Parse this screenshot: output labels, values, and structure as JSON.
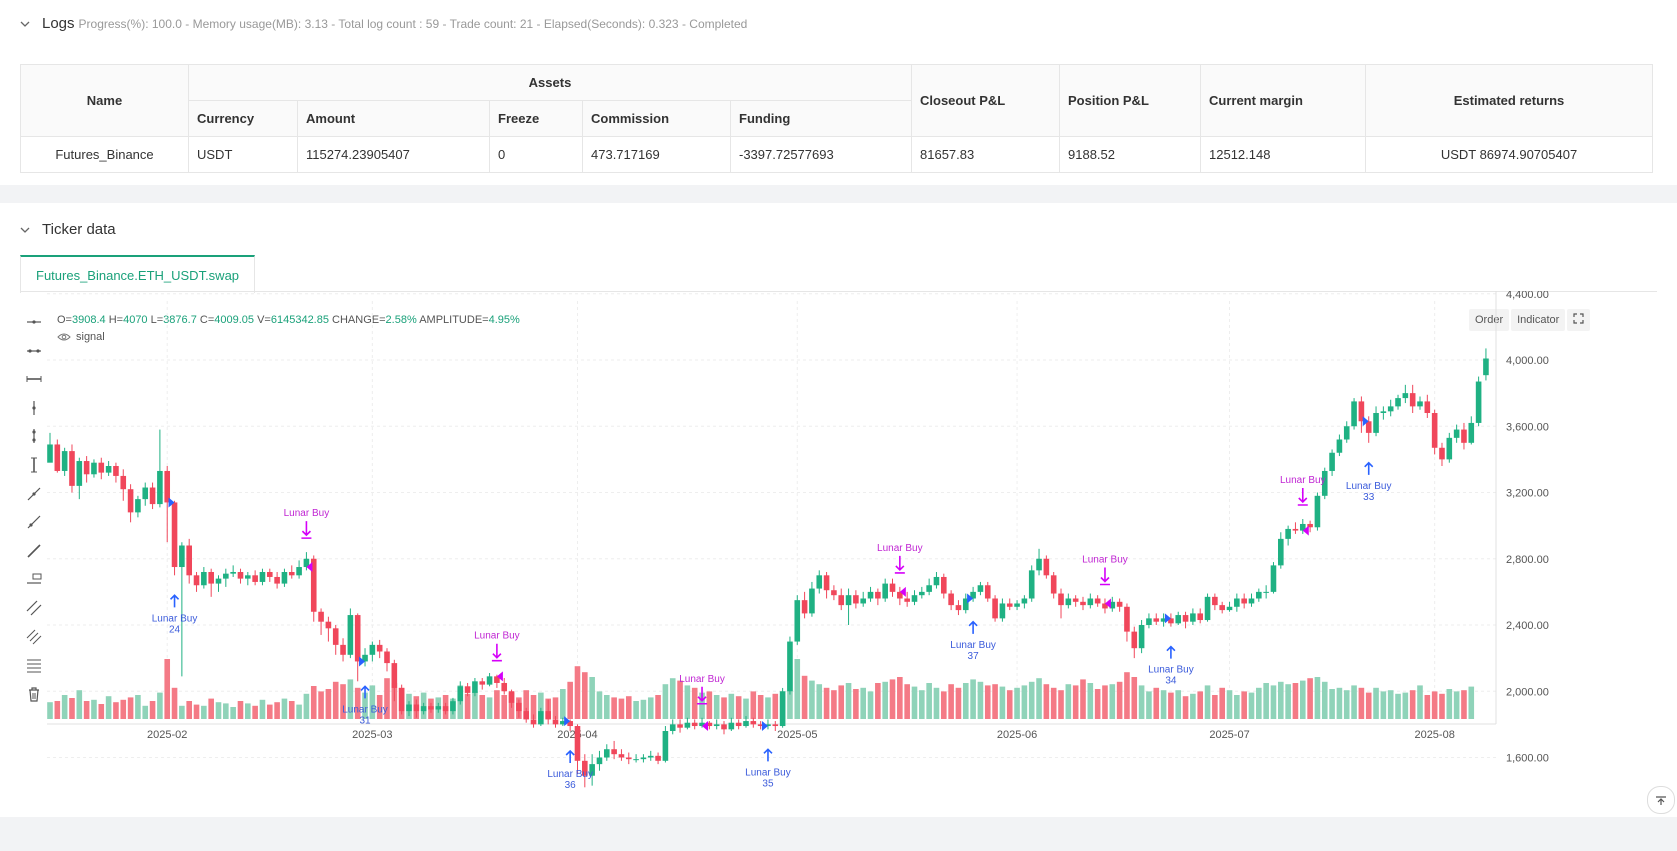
{
  "logs": {
    "title": "Logs",
    "status": "Progress(%): 100.0  - Memory usage(MB): 3.13 - Total log count : 59 - Trade count:  21 - Elapsed(Seconds): 0.323 - Completed",
    "table": {
      "headers": {
        "name": "Name",
        "assets": "Assets",
        "currency": "Currency",
        "amount": "Amount",
        "freeze": "Freeze",
        "commission": "Commission",
        "funding": "Funding",
        "closeout": "Closeout P&L",
        "position": "Position P&L",
        "margin": "Current margin",
        "returns": "Estimated returns"
      },
      "row": {
        "name": "Futures_Binance",
        "currency": "USDT",
        "amount": "115274.23905407",
        "freeze": "0",
        "commission": "473.717169",
        "funding": "-3397.72577693",
        "closeout": "81657.83",
        "position": "9188.52",
        "margin": "12512.148",
        "returns": "USDT 86974.90705407"
      }
    }
  },
  "ticker": {
    "title": "Ticker data",
    "tab": "Futures_Binance.ETH_USDT.swap",
    "ohlc": {
      "o_label": "O=",
      "o": "3908.4",
      "h_label": "H=",
      "h": "4070",
      "l_label": "L=",
      "l": "3876.7",
      "c_label": "C=",
      "c": "4009.05",
      "v_label": "V=",
      "v": "6145342.85",
      "change_label": "CHANGE=",
      "change": "2.58%",
      "amp_label": "AMPLITUDE=",
      "amp": "4.95%"
    },
    "signal_label": "signal",
    "buttons": {
      "order": "Order",
      "indicator": "Indicator"
    }
  },
  "colors": {
    "up": "#26a69a",
    "down": "#ef5350",
    "buy_marker": "#2962ff",
    "sell_marker": "#d500f9",
    "accent": "#1aa17a"
  },
  "chart_data": {
    "type": "candlestick",
    "symbol": "Futures_Binance.ETH_USDT.swap",
    "y_axis": {
      "ticks": [
        1600,
        2000,
        2400,
        2800,
        3200,
        3600,
        4000,
        4400
      ],
      "tick_labels": [
        "1,600.00",
        "2,000.00",
        "2,400.00",
        "2,800.00",
        "3,200.00",
        "3,600.00",
        "4,000.00",
        "4,400.00"
      ],
      "ylim": [
        1230,
        4690
      ]
    },
    "x_axis": {
      "labels": [
        "2025-02",
        "2025-03",
        "2025-04",
        "2025-05",
        "2025-06",
        "2025-07",
        "2025-08"
      ],
      "label_day_index": [
        16,
        44,
        72,
        102,
        132,
        161,
        189
      ]
    },
    "candles": [
      [
        3380,
        3490,
        3420,
        3560
      ],
      [
        3490,
        3330,
        3520,
        3320
      ],
      [
        3330,
        3450,
        3470,
        3300
      ],
      [
        3450,
        3240,
        3490,
        3200
      ],
      [
        3240,
        3390,
        3410,
        3160
      ],
      [
        3390,
        3310,
        3420,
        3260
      ],
      [
        3310,
        3380,
        3400,
        3290
      ],
      [
        3380,
        3320,
        3410,
        3280
      ],
      [
        3320,
        3360,
        3390,
        3300
      ],
      [
        3360,
        3300,
        3380,
        3260
      ],
      [
        3300,
        3220,
        3340,
        3150
      ],
      [
        3220,
        3080,
        3250,
        3020
      ],
      [
        3080,
        3160,
        3180,
        3050
      ],
      [
        3160,
        3230,
        3260,
        3120
      ],
      [
        3230,
        3130,
        3260,
        3100
      ],
      [
        3130,
        3330,
        3580,
        3110
      ],
      [
        3330,
        3140,
        3360,
        2900
      ],
      [
        3140,
        2750,
        3150,
        2700
      ],
      [
        2750,
        2880,
        2900,
        2090
      ],
      [
        2880,
        2700,
        2920,
        2650
      ],
      [
        2700,
        2640,
        2720,
        2600
      ],
      [
        2640,
        2720,
        2750,
        2620
      ],
      [
        2720,
        2650,
        2740,
        2570
      ],
      [
        2650,
        2680,
        2700,
        2600
      ],
      [
        2680,
        2710,
        2740,
        2630
      ],
      [
        2710,
        2720,
        2760,
        2690
      ],
      [
        2720,
        2680,
        2740,
        2650
      ],
      [
        2680,
        2700,
        2720,
        2640
      ],
      [
        2700,
        2660,
        2730,
        2640
      ],
      [
        2660,
        2720,
        2740,
        2640
      ],
      [
        2720,
        2690,
        2740,
        2660
      ],
      [
        2690,
        2650,
        2720,
        2620
      ],
      [
        2650,
        2720,
        2740,
        2630
      ],
      [
        2720,
        2700,
        2760,
        2680
      ],
      [
        2700,
        2750,
        2790,
        2680
      ],
      [
        2750,
        2800,
        2840,
        2730
      ],
      [
        2800,
        2480,
        2820,
        2420
      ],
      [
        2480,
        2420,
        2500,
        2340
      ],
      [
        2420,
        2380,
        2450,
        2300
      ],
      [
        2380,
        2280,
        2400,
        2220
      ],
      [
        2280,
        2220,
        2320,
        2180
      ],
      [
        2220,
        2460,
        2500,
        2200
      ],
      [
        2460,
        2180,
        2470,
        2060
      ],
      [
        2180,
        2220,
        2260,
        2150
      ],
      [
        2220,
        2280,
        2300,
        2180
      ],
      [
        2280,
        2240,
        2310,
        2200
      ],
      [
        2240,
        2170,
        2260,
        2120
      ],
      [
        2170,
        2020,
        2190,
        1940
      ],
      [
        2020,
        1880,
        2040,
        1860
      ],
      [
        1880,
        1920,
        1940,
        1850
      ],
      [
        1920,
        1880,
        1950,
        1840
      ],
      [
        1880,
        1910,
        1930,
        1860
      ],
      [
        1910,
        1890,
        1930,
        1870
      ],
      [
        1890,
        1910,
        1930,
        1870
      ],
      [
        1910,
        1880,
        1930,
        1860
      ],
      [
        1880,
        1940,
        1960,
        1860
      ],
      [
        1940,
        2030,
        2060,
        1920
      ],
      [
        2030,
        1990,
        2050,
        1970
      ],
      [
        1990,
        2060,
        2080,
        1970
      ],
      [
        2060,
        2040,
        2080,
        2010
      ],
      [
        2040,
        2090,
        2110,
        2030
      ],
      [
        2090,
        2050,
        2100,
        2020
      ],
      [
        2050,
        2000,
        2080,
        1980
      ],
      [
        2000,
        1930,
        2010,
        1900
      ],
      [
        1930,
        1880,
        1950,
        1840
      ],
      [
        1880,
        1830,
        1900,
        1810
      ],
      [
        1830,
        1800,
        1860,
        1780
      ],
      [
        1800,
        1880,
        1900,
        1790
      ],
      [
        1880,
        1830,
        1950,
        1800
      ],
      [
        1830,
        1800,
        1850,
        1780
      ],
      [
        1800,
        1820,
        1840,
        1790
      ],
      [
        1820,
        1790,
        1830,
        1760
      ],
      [
        1790,
        1580,
        1800,
        1500
      ],
      [
        1580,
        1490,
        1620,
        1420
      ],
      [
        1490,
        1560,
        1620,
        1430
      ],
      [
        1560,
        1600,
        1640,
        1520
      ],
      [
        1600,
        1650,
        1680,
        1580
      ],
      [
        1650,
        1620,
        1700,
        1590
      ],
      [
        1620,
        1600,
        1650,
        1580
      ],
      [
        1600,
        1590,
        1630,
        1560
      ],
      [
        1590,
        1590,
        1620,
        1570
      ],
      [
        1590,
        1600,
        1620,
        1570
      ],
      [
        1600,
        1610,
        1640,
        1580
      ],
      [
        1610,
        1580,
        1630,
        1560
      ],
      [
        1580,
        1760,
        1790,
        1570
      ],
      [
        1760,
        1800,
        1830,
        1740
      ],
      [
        1800,
        1780,
        1830,
        1750
      ],
      [
        1780,
        1810,
        1840,
        1770
      ],
      [
        1810,
        1790,
        1830,
        1770
      ],
      [
        1790,
        1810,
        1840,
        1780
      ],
      [
        1810,
        1790,
        1820,
        1770
      ],
      [
        1790,
        1800,
        1830,
        1770
      ],
      [
        1800,
        1770,
        1820,
        1740
      ],
      [
        1770,
        1810,
        1840,
        1760
      ],
      [
        1810,
        1790,
        1830,
        1770
      ],
      [
        1790,
        1820,
        1850,
        1780
      ],
      [
        1820,
        1800,
        1840,
        1780
      ],
      [
        1800,
        1790,
        1820,
        1770
      ],
      [
        1790,
        1800,
        1830,
        1770
      ],
      [
        1800,
        1790,
        1820,
        1760
      ],
      [
        1790,
        2000,
        2020,
        1780
      ],
      [
        2000,
        2300,
        2330,
        1980
      ],
      [
        2300,
        2550,
        2580,
        2280
      ],
      [
        2550,
        2470,
        2600,
        2440
      ],
      [
        2470,
        2620,
        2660,
        2450
      ],
      [
        2620,
        2700,
        2730,
        2590
      ],
      [
        2700,
        2610,
        2720,
        2560
      ],
      [
        2610,
        2580,
        2640,
        2550
      ],
      [
        2580,
        2520,
        2620,
        2490
      ],
      [
        2520,
        2580,
        2620,
        2400
      ],
      [
        2580,
        2530,
        2610,
        2500
      ],
      [
        2530,
        2560,
        2600,
        2510
      ],
      [
        2560,
        2600,
        2630,
        2540
      ],
      [
        2600,
        2560,
        2620,
        2520
      ],
      [
        2560,
        2650,
        2680,
        2540
      ],
      [
        2650,
        2600,
        2680,
        2570
      ],
      [
        2600,
        2560,
        2630,
        2520
      ],
      [
        2560,
        2540,
        2600,
        2510
      ],
      [
        2540,
        2580,
        2610,
        2520
      ],
      [
        2580,
        2600,
        2630,
        2560
      ],
      [
        2600,
        2640,
        2680,
        2580
      ],
      [
        2640,
        2690,
        2720,
        2620
      ],
      [
        2690,
        2590,
        2710,
        2560
      ],
      [
        2590,
        2520,
        2610,
        2490
      ],
      [
        2520,
        2490,
        2550,
        2460
      ],
      [
        2490,
        2560,
        2590,
        2470
      ],
      [
        2560,
        2600,
        2630,
        2540
      ],
      [
        2600,
        2640,
        2660,
        2580
      ],
      [
        2640,
        2560,
        2660,
        2540
      ],
      [
        2560,
        2440,
        2580,
        2420
      ],
      [
        2440,
        2530,
        2560,
        2420
      ],
      [
        2530,
        2510,
        2560,
        2490
      ],
      [
        2510,
        2530,
        2550,
        2490
      ],
      [
        2530,
        2560,
        2580,
        2500
      ],
      [
        2560,
        2730,
        2760,
        2540
      ],
      [
        2730,
        2800,
        2860,
        2700
      ],
      [
        2800,
        2700,
        2820,
        2680
      ],
      [
        2700,
        2590,
        2720,
        2560
      ],
      [
        2590,
        2520,
        2620,
        2440
      ],
      [
        2520,
        2560,
        2590,
        2500
      ],
      [
        2560,
        2540,
        2580,
        2510
      ],
      [
        2540,
        2520,
        2570,
        2490
      ],
      [
        2520,
        2560,
        2590,
        2500
      ],
      [
        2560,
        2530,
        2580,
        2510
      ],
      [
        2530,
        2500,
        2560,
        2470
      ],
      [
        2500,
        2540,
        2570,
        2480
      ],
      [
        2540,
        2510,
        2560,
        2480
      ],
      [
        2510,
        2360,
        2530,
        2300
      ],
      [
        2360,
        2260,
        2390,
        2200
      ],
      [
        2260,
        2400,
        2430,
        2230
      ],
      [
        2400,
        2440,
        2470,
        2380
      ],
      [
        2440,
        2420,
        2470,
        2400
      ],
      [
        2420,
        2440,
        2470,
        2390
      ],
      [
        2440,
        2410,
        2470,
        2390
      ],
      [
        2410,
        2460,
        2480,
        2400
      ],
      [
        2460,
        2420,
        2480,
        2380
      ],
      [
        2420,
        2470,
        2500,
        2400
      ],
      [
        2470,
        2430,
        2500,
        2410
      ],
      [
        2430,
        2570,
        2590,
        2420
      ],
      [
        2570,
        2520,
        2590,
        2490
      ],
      [
        2520,
        2490,
        2540,
        2470
      ],
      [
        2490,
        2510,
        2540,
        2480
      ],
      [
        2510,
        2560,
        2590,
        2480
      ],
      [
        2560,
        2530,
        2590,
        2500
      ],
      [
        2530,
        2560,
        2590,
        2510
      ],
      [
        2560,
        2600,
        2620,
        2540
      ],
      [
        2600,
        2600,
        2640,
        2560
      ],
      [
        2600,
        2760,
        2780,
        2590
      ],
      [
        2760,
        2920,
        2960,
        2740
      ],
      [
        2920,
        2980,
        3000,
        2880
      ],
      [
        2980,
        2970,
        3020,
        2950
      ],
      [
        2970,
        3010,
        3040,
        2950
      ],
      [
        3010,
        2990,
        3030,
        2960
      ],
      [
        2990,
        3180,
        3200,
        2970
      ],
      [
        3180,
        3330,
        3350,
        3160
      ],
      [
        3330,
        3440,
        3460,
        3300
      ],
      [
        3440,
        3520,
        3550,
        3420
      ],
      [
        3520,
        3600,
        3630,
        3500
      ],
      [
        3600,
        3750,
        3770,
        3580
      ],
      [
        3750,
        3630,
        3780,
        3560
      ],
      [
        3630,
        3560,
        3660,
        3500
      ],
      [
        3560,
        3680,
        3720,
        3540
      ],
      [
        3680,
        3690,
        3720,
        3640
      ],
      [
        3690,
        3720,
        3760,
        3660
      ],
      [
        3720,
        3770,
        3790,
        3700
      ],
      [
        3770,
        3800,
        3850,
        3740
      ],
      [
        3800,
        3720,
        3850,
        3680
      ],
      [
        3720,
        3750,
        3780,
        3700
      ],
      [
        3750,
        3680,
        3790,
        3650
      ],
      [
        3680,
        3470,
        3700,
        3430
      ],
      [
        3470,
        3400,
        3500,
        3360
      ],
      [
        3400,
        3530,
        3560,
        3380
      ],
      [
        3530,
        3580,
        3610,
        3500
      ],
      [
        3580,
        3500,
        3620,
        3460
      ],
      [
        3500,
        3620,
        3660,
        3490
      ],
      [
        3620,
        3870,
        3900,
        3600
      ],
      [
        3908.4,
        4009.05,
        4070,
        3876.7
      ]
    ],
    "volumes": [
      28,
      30,
      40,
      35,
      48,
      30,
      32,
      25,
      38,
      28,
      32,
      36,
      40,
      22,
      30,
      44,
      100,
      52,
      22,
      30,
      24,
      22,
      34,
      28,
      26,
      20,
      30,
      26,
      22,
      32,
      24,
      28,
      34,
      30,
      24,
      42,
      55,
      46,
      50,
      62,
      58,
      66,
      52,
      44,
      56,
      40,
      68,
      60,
      52,
      42,
      38,
      44,
      34,
      36,
      40,
      34,
      56,
      42,
      46,
      40,
      36,
      48,
      40,
      44,
      36,
      48,
      40,
      44,
      34,
      36,
      50,
      62,
      88,
      78,
      70,
      46,
      40,
      36,
      34,
      38,
      30,
      32,
      36,
      40,
      58,
      68,
      64,
      56,
      52,
      44,
      46,
      40,
      36,
      42,
      38,
      34,
      46,
      40,
      36,
      42,
      38,
      82,
      100,
      72,
      64,
      58,
      52,
      48,
      56,
      60,
      50,
      52,
      46,
      60,
      62,
      66,
      70,
      58,
      54,
      48,
      60,
      52,
      46,
      58,
      52,
      60,
      66,
      62,
      56,
      58,
      54,
      48,
      52,
      56,
      62,
      68,
      58,
      52,
      48,
      58,
      56,
      66,
      60,
      50,
      56,
      58,
      62,
      78,
      70,
      56,
      46,
      52,
      48,
      44,
      48,
      38,
      42,
      46,
      56,
      40,
      52,
      48,
      40,
      46,
      44,
      52,
      60,
      56,
      62,
      58,
      60,
      64,
      68,
      70,
      62,
      50,
      52,
      48,
      56,
      52,
      44,
      52,
      46,
      48,
      42,
      44,
      48,
      56,
      40,
      46,
      42,
      50,
      46,
      48,
      54
    ]
  },
  "markers": [
    {
      "type": "buy",
      "label": "Lunar Buy",
      "id": "24",
      "day": 17
    },
    {
      "type": "sell",
      "label": "Lunar Buy",
      "day": 35
    },
    {
      "type": "buy",
      "label": "Lunar Buy",
      "id": "31",
      "day": 43
    },
    {
      "type": "sell",
      "label": "Lunar Buy",
      "day": 61
    },
    {
      "type": "buy",
      "label": "Lunar Buy",
      "id": "36",
      "day": 71
    },
    {
      "type": "sell",
      "label": "Lunar Buy",
      "day": 89
    },
    {
      "type": "buy",
      "label": "Lunar Buy",
      "id": "35",
      "day": 98
    },
    {
      "type": "sell",
      "label": "Lunar Buy",
      "day": 116
    },
    {
      "type": "buy",
      "label": "Lunar Buy",
      "id": "37",
      "day": 126
    },
    {
      "type": "sell",
      "label": "Lunar Buy",
      "day": 144
    },
    {
      "type": "buy",
      "label": "Lunar Buy",
      "id": "34",
      "day": 153
    },
    {
      "type": "sell",
      "label": "Lunar Buy",
      "day": 171
    },
    {
      "type": "buy",
      "label": "Lunar Buy",
      "id": "33",
      "day": 180
    }
  ]
}
